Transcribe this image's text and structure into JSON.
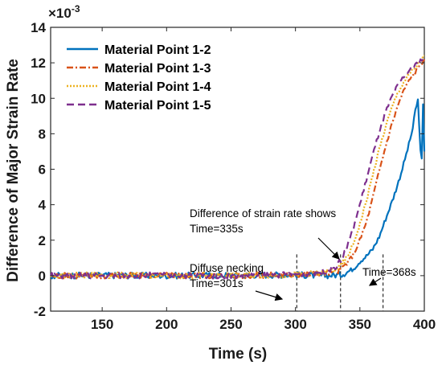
{
  "chart_data": {
    "type": "line",
    "xlabel": "Time (s)",
    "ylabel": "Difference of Major Strain Rate",
    "y_multiplier": "×10",
    "y_exponent": "-3",
    "xlim": [
      110,
      400
    ],
    "ylim": [
      -2,
      14
    ],
    "xticks": [
      150,
      200,
      250,
      300,
      350,
      400
    ],
    "yticks": [
      -2,
      0,
      2,
      4,
      6,
      8,
      10,
      12,
      14
    ],
    "grid": false,
    "legend_position": "top-left",
    "series": [
      {
        "name": "Material Point 1-2",
        "color": "#0072BD",
        "dash": "solid",
        "x": [
          110,
          150,
          200,
          250,
          300,
          320,
          335,
          340,
          345,
          350,
          355,
          360,
          365,
          368,
          372,
          376,
          380,
          384,
          388,
          391,
          393,
          395,
          396,
          397,
          398,
          399,
          400
        ],
        "y": [
          0,
          0.02,
          0,
          0.03,
          0.05,
          0,
          0.05,
          0.2,
          0.4,
          0.8,
          1.1,
          1.5,
          2.2,
          2.8,
          3.6,
          4.4,
          5.3,
          6.3,
          7.4,
          8.3,
          9.3,
          9.9,
          8.4,
          7.2,
          6.5,
          9.6,
          7.0
        ]
      },
      {
        "name": "Material Point 1-3",
        "color": "#D95319",
        "dash": "dashdot",
        "x": [
          110,
          150,
          200,
          250,
          300,
          320,
          330,
          335,
          340,
          345,
          350,
          355,
          360,
          365,
          370,
          375,
          380,
          385,
          390,
          395,
          400
        ],
        "y": [
          0,
          0,
          0.02,
          0,
          0.05,
          0.1,
          0.2,
          0.35,
          0.7,
          1.2,
          2.0,
          3.0,
          4.4,
          5.9,
          7.3,
          8.6,
          9.7,
          10.6,
          11.2,
          11.7,
          12.2
        ]
      },
      {
        "name": "Material Point 1-4",
        "color": "#EDB120",
        "dash": "dotted",
        "x": [
          110,
          150,
          200,
          250,
          300,
          320,
          330,
          335,
          340,
          345,
          350,
          355,
          360,
          365,
          370,
          375,
          380,
          385,
          390,
          395,
          400
        ],
        "y": [
          0,
          0.02,
          0,
          0.02,
          0.05,
          0.15,
          0.3,
          0.5,
          1.0,
          1.8,
          2.9,
          4.2,
          5.7,
          7.1,
          8.4,
          9.5,
          10.4,
          11.0,
          11.5,
          11.9,
          12.4
        ]
      },
      {
        "name": "Material Point 1-5",
        "color": "#7E2F8E",
        "dash": "dashed",
        "x": [
          110,
          150,
          200,
          250,
          300,
          320,
          330,
          335,
          340,
          345,
          350,
          355,
          360,
          365,
          370,
          375,
          380,
          385,
          390,
          395,
          400
        ],
        "y": [
          0,
          0,
          0.03,
          0,
          0.08,
          0.2,
          0.45,
          0.8,
          1.6,
          2.7,
          4.0,
          5.4,
          6.8,
          8.1,
          9.2,
          10.1,
          10.8,
          11.3,
          11.7,
          12.0,
          12.3
        ]
      }
    ],
    "vlines": [
      301,
      335,
      368
    ],
    "annotations": [
      {
        "id": "a1",
        "text": "Difference of strain rate shows"
      },
      {
        "id": "a2",
        "text": "Time=335s"
      },
      {
        "id": "a3",
        "text": "Diffuse necking"
      },
      {
        "id": "a4",
        "text": "Time=301s"
      },
      {
        "id": "a5",
        "text": "Time=368s"
      }
    ]
  }
}
